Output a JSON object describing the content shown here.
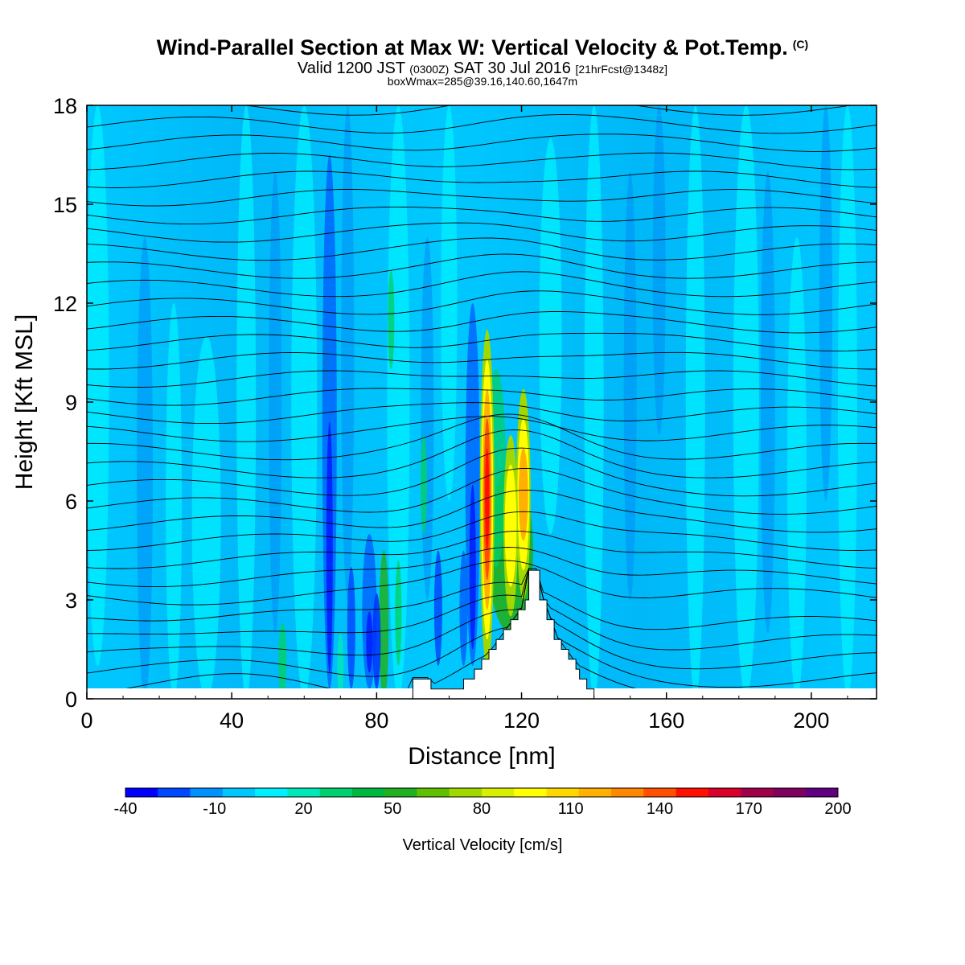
{
  "header": {
    "title": "Wind-Parallel Section at Max W: Vertical Velocity & Pot.Temp.",
    "copyright": "(C)",
    "valid_prefix": "Valid 1200 JST",
    "valid_z": "(0300Z)",
    "valid_date": "SAT 30 Jul 2016",
    "forecast": "[21hrFcst@1348z]",
    "boxinfo": "boxWmax=285@39.16,140.60,1647m"
  },
  "chart_data": {
    "type": "heatmap",
    "xlabel": "Distance [nm]",
    "ylabel": "Height [Kft MSL]",
    "xlim": [
      0,
      218
    ],
    "ylim": [
      0,
      18
    ],
    "x_ticks": [
      "0",
      "40",
      "80",
      "120",
      "160",
      "200"
    ],
    "y_ticks": [
      "0",
      "3",
      "6",
      "9",
      "12",
      "15",
      "18"
    ],
    "colorbar": {
      "label": "Vertical Velocity [cm/s]",
      "min": -40,
      "max": 200,
      "step": 10,
      "tick_labels": [
        "-40",
        "-10",
        "20",
        "50",
        "80",
        "110",
        "140",
        "170",
        "200"
      ],
      "colors": [
        "#0000ff",
        "#0048ff",
        "#0090ff",
        "#00c8ff",
        "#00f0ff",
        "#00e8b8",
        "#00d070",
        "#00b840",
        "#20b020",
        "#60c000",
        "#a0d800",
        "#d8f000",
        "#ffff00",
        "#ffd800",
        "#ffb000",
        "#ff8800",
        "#ff5000",
        "#ff1000",
        "#d8002a",
        "#a00048",
        "#800060",
        "#600080"
      ]
    },
    "terrain_profile_kft": [
      [
        0,
        0
      ],
      [
        90,
        0
      ],
      [
        90,
        0.6
      ],
      [
        95,
        0.6
      ],
      [
        95,
        0.3
      ],
      [
        104,
        0.3
      ],
      [
        104,
        0.6
      ],
      [
        107,
        0.6
      ],
      [
        107,
        0.9
      ],
      [
        109,
        0.9
      ],
      [
        109,
        1.2
      ],
      [
        111,
        1.2
      ],
      [
        111,
        1.5
      ],
      [
        113,
        1.5
      ],
      [
        113,
        1.8
      ],
      [
        115,
        1.8
      ],
      [
        115,
        2.1
      ],
      [
        117,
        2.1
      ],
      [
        117,
        2.4
      ],
      [
        119,
        2.4
      ],
      [
        119,
        2.7
      ],
      [
        121,
        2.7
      ],
      [
        121,
        3.0
      ],
      [
        122,
        3.0
      ],
      [
        122,
        3.9
      ],
      [
        125,
        3.9
      ],
      [
        125,
        3.0
      ],
      [
        127,
        3.0
      ],
      [
        127,
        2.4
      ],
      [
        129,
        2.4
      ],
      [
        129,
        1.8
      ],
      [
        131,
        1.8
      ],
      [
        131,
        1.5
      ],
      [
        133,
        1.5
      ],
      [
        133,
        1.2
      ],
      [
        135,
        1.2
      ],
      [
        135,
        0.9
      ],
      [
        136,
        0.9
      ],
      [
        136,
        0.6
      ],
      [
        138,
        0.6
      ],
      [
        138,
        0.3
      ],
      [
        140,
        0.3
      ],
      [
        140,
        0
      ],
      [
        218,
        0
      ]
    ],
    "updraft_cores": [
      {
        "x": 110.5,
        "z_bottom_kft": 0.9,
        "z_top_kft": 11.2,
        "max_cm_s": 285
      },
      {
        "x": 120.5,
        "z_bottom_kft": 3.0,
        "z_top_kft": 9.4,
        "max_cm_s": 130
      },
      {
        "x": 117.0,
        "z_bottom_kft": 2.5,
        "z_top_kft": 8.0,
        "max_cm_s": 90
      }
    ],
    "downdraft_cores": [
      {
        "x": 106.5,
        "z_bottom_kft": 1.0,
        "z_top_kft": 12.0,
        "min_cm_s": -40
      },
      {
        "x": 78.0,
        "z_bottom_kft": 0.3,
        "z_top_kft": 5.0,
        "min_cm_s": -40
      },
      {
        "x": 67.0,
        "z_bottom_kft": 0.3,
        "z_top_kft": 16.5,
        "min_cm_s": -25
      }
    ]
  }
}
